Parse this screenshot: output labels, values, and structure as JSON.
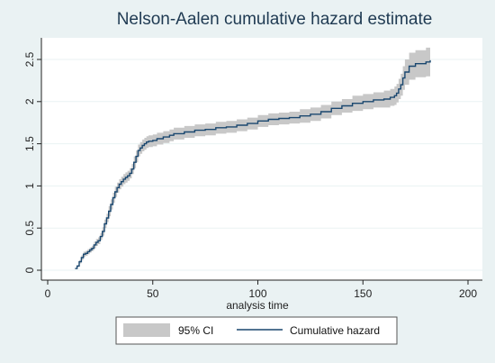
{
  "chart_data": {
    "type": "line",
    "title": "Nelson-Aalen cumulative hazard estimate",
    "xlabel": "analysis time",
    "ylabel": "",
    "xlim": [
      0,
      200
    ],
    "ylim": [
      0,
      2.6
    ],
    "x_ticks": [
      0,
      50,
      100,
      150,
      200
    ],
    "y_ticks": [
      0,
      0.5,
      1,
      1.5,
      2,
      2.5
    ],
    "x_tick_labels": [
      "0",
      "50",
      "100",
      "150",
      "200"
    ],
    "y_tick_labels": [
      "0",
      "0.5",
      "1",
      "1.5",
      "2",
      "2.5"
    ],
    "grid": "horizontal",
    "legend": {
      "position": "bottom",
      "entries": [
        "95% CI",
        "Cumulative hazard"
      ]
    },
    "series": [
      {
        "name": "Cumulative hazard",
        "style": "step",
        "color": "#1a476f",
        "x": [
          13,
          14,
          15,
          16,
          17,
          18,
          19,
          20,
          21,
          22,
          23,
          24,
          25,
          26,
          27,
          28,
          29,
          30,
          31,
          32,
          33,
          34,
          35,
          36,
          37,
          38,
          39,
          40,
          41,
          42,
          43,
          44,
          45,
          46,
          47,
          48,
          50,
          52,
          55,
          58,
          60,
          65,
          70,
          75,
          80,
          85,
          90,
          95,
          100,
          105,
          110,
          115,
          120,
          125,
          130,
          135,
          140,
          145,
          150,
          155,
          160,
          163,
          165,
          166,
          167,
          168,
          169,
          170,
          172,
          175,
          180,
          182
        ],
        "values": [
          0.02,
          0.05,
          0.1,
          0.15,
          0.19,
          0.2,
          0.22,
          0.24,
          0.26,
          0.3,
          0.33,
          0.35,
          0.4,
          0.46,
          0.55,
          0.62,
          0.7,
          0.78,
          0.86,
          0.93,
          0.98,
          1.02,
          1.05,
          1.08,
          1.1,
          1.12,
          1.15,
          1.2,
          1.28,
          1.35,
          1.42,
          1.45,
          1.48,
          1.5,
          1.52,
          1.53,
          1.54,
          1.56,
          1.58,
          1.6,
          1.62,
          1.64,
          1.66,
          1.67,
          1.69,
          1.7,
          1.72,
          1.74,
          1.77,
          1.79,
          1.8,
          1.81,
          1.83,
          1.85,
          1.88,
          1.92,
          1.95,
          1.98,
          2.0,
          2.02,
          2.03,
          2.05,
          2.07,
          2.1,
          2.15,
          2.2,
          2.28,
          2.35,
          2.42,
          2.45,
          2.47,
          2.49
        ]
      },
      {
        "name": "95% CI",
        "style": "band",
        "color": "#c8c8c8",
        "x": [
          13,
          14,
          15,
          16,
          17,
          18,
          19,
          20,
          21,
          22,
          23,
          24,
          25,
          26,
          27,
          28,
          29,
          30,
          31,
          32,
          33,
          34,
          35,
          36,
          37,
          38,
          39,
          40,
          41,
          42,
          43,
          44,
          45,
          46,
          47,
          48,
          50,
          52,
          55,
          58,
          60,
          65,
          70,
          75,
          80,
          85,
          90,
          95,
          100,
          105,
          110,
          115,
          120,
          125,
          130,
          135,
          140,
          145,
          150,
          155,
          160,
          163,
          165,
          166,
          167,
          168,
          169,
          170,
          172,
          175,
          180,
          182
        ],
        "lower": [
          0.02,
          0.04,
          0.08,
          0.12,
          0.16,
          0.17,
          0.19,
          0.21,
          0.23,
          0.26,
          0.29,
          0.31,
          0.36,
          0.41,
          0.5,
          0.57,
          0.64,
          0.72,
          0.8,
          0.87,
          0.92,
          0.96,
          0.99,
          1.02,
          1.04,
          1.06,
          1.09,
          1.14,
          1.21,
          1.28,
          1.35,
          1.38,
          1.41,
          1.43,
          1.45,
          1.46,
          1.47,
          1.49,
          1.51,
          1.53,
          1.55,
          1.57,
          1.59,
          1.6,
          1.62,
          1.63,
          1.65,
          1.67,
          1.7,
          1.72,
          1.73,
          1.74,
          1.75,
          1.77,
          1.8,
          1.84,
          1.87,
          1.89,
          1.91,
          1.93,
          1.93,
          1.95,
          1.96,
          1.99,
          2.03,
          2.07,
          2.14,
          2.2,
          2.26,
          2.29,
          2.3,
          2.32
        ],
        "upper": [
          0.02,
          0.06,
          0.12,
          0.18,
          0.22,
          0.23,
          0.25,
          0.27,
          0.29,
          0.34,
          0.37,
          0.39,
          0.44,
          0.51,
          0.6,
          0.67,
          0.76,
          0.84,
          0.92,
          0.99,
          1.04,
          1.08,
          1.11,
          1.14,
          1.16,
          1.18,
          1.21,
          1.26,
          1.35,
          1.42,
          1.49,
          1.52,
          1.55,
          1.57,
          1.59,
          1.6,
          1.61,
          1.63,
          1.65,
          1.67,
          1.69,
          1.71,
          1.73,
          1.74,
          1.76,
          1.77,
          1.79,
          1.81,
          1.84,
          1.86,
          1.87,
          1.88,
          1.91,
          1.93,
          1.96,
          2.0,
          2.03,
          2.07,
          2.09,
          2.11,
          2.13,
          2.15,
          2.18,
          2.21,
          2.27,
          2.33,
          2.42,
          2.5,
          2.58,
          2.61,
          2.64,
          2.66
        ]
      }
    ]
  }
}
